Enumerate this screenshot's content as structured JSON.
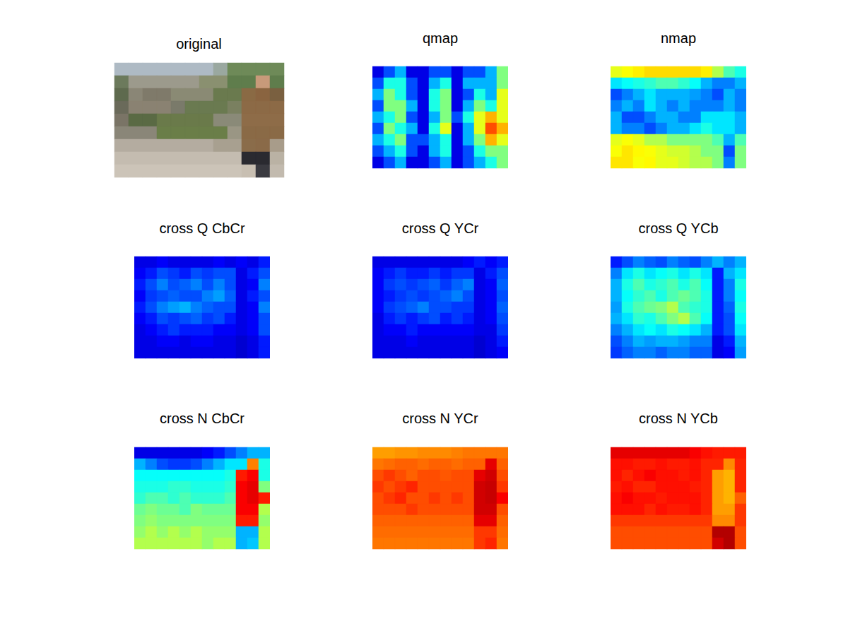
{
  "chart_data": [
    {
      "type": "image",
      "title": "original",
      "tick_labels": false,
      "colors": [
        [
          "#aebac4",
          "#aebac4",
          "#aebac4",
          "#aebac4",
          "#aebac4",
          "#aebac4",
          "#aebac4",
          "#9aa8a0",
          "#6e8a58",
          "#6e8a58",
          "#6e8a58",
          "#6e8a58"
        ],
        [
          "#6c7a5c",
          "#9c9a8c",
          "#9c9a8c",
          "#9c9a8c",
          "#9c9a8c",
          "#9c9a8c",
          "#8a9070",
          "#8a9070",
          "#5f7d4c",
          "#5f7d4c",
          "#c89a7a",
          "#5f7d4c"
        ],
        [
          "#5e6a4e",
          "#8a8676",
          "#7f7a6a",
          "#7f7a6a",
          "#8a8a74",
          "#8a8a74",
          "#8a8a74",
          "#6a7a4e",
          "#6a7a4e",
          "#8a6a44",
          "#8a6440",
          "#7a6040"
        ],
        [
          "#6a6a5a",
          "#8a8272",
          "#8a8272",
          "#8a8272",
          "#7a7a6a",
          "#6a7a50",
          "#6a7a50",
          "#6a7a50",
          "#7a8060",
          "#8c6a46",
          "#8c6a46",
          "#8c6a46"
        ],
        [
          "#7a7466",
          "#5a6a44",
          "#5a6a44",
          "#6a7a4a",
          "#6a7a4a",
          "#6a7a4a",
          "#6a7a4a",
          "#8a8a78",
          "#8a8a78",
          "#8e6c48",
          "#8e6c48",
          "#8e6c48"
        ],
        [
          "#8a8678",
          "#8a8678",
          "#8a8678",
          "#6a7e48",
          "#6a7e48",
          "#6a7e48",
          "#6a7e48",
          "#6a7e48",
          "#9a9684",
          "#8a6a46",
          "#8a6a46",
          "#8a6a46"
        ],
        [
          "#b4aca0",
          "#b4aca0",
          "#b4aca0",
          "#b4aca0",
          "#b4aca0",
          "#b4aca0",
          "#b4aca0",
          "#a8a090",
          "#a8a090",
          "#8a6c4a",
          "#8a6a48",
          "#a89c8a"
        ],
        [
          "#c4bcb0",
          "#c4bcb0",
          "#c4bcb0",
          "#c4bcb0",
          "#c4bcb0",
          "#c4bcb0",
          "#c4bcb0",
          "#c4bcb0",
          "#c4bcb0",
          "#2a2a30",
          "#2a2a30",
          "#bab2a4"
        ],
        [
          "#ccc4b8",
          "#ccc4b8",
          "#ccc4b8",
          "#ccc4b8",
          "#ccc4b8",
          "#ccc4b8",
          "#ccc4b8",
          "#ccc4b8",
          "#ccc4b8",
          "#c8bfb2",
          "#3a3a40",
          "#c2baae"
        ]
      ]
    },
    {
      "type": "heatmap",
      "title": "qmap",
      "tick_labels": false,
      "clim": [
        0,
        1
      ],
      "cells": [
        [
          0.1,
          0.2,
          0.3,
          0.1,
          0.1,
          0.2,
          0.2,
          0.1,
          0.2,
          0.2,
          0.3,
          0.5
        ],
        [
          0.2,
          0.4,
          0.4,
          0.2,
          0.1,
          0.3,
          0.4,
          0.1,
          0.3,
          0.3,
          0.3,
          0.5
        ],
        [
          0.3,
          0.5,
          0.4,
          0.2,
          0.1,
          0.4,
          0.5,
          0.1,
          0.2,
          0.4,
          0.3,
          0.6
        ],
        [
          0.2,
          0.5,
          0.5,
          0.3,
          0.1,
          0.4,
          0.5,
          0.1,
          0.3,
          0.5,
          0.4,
          0.6
        ],
        [
          0.3,
          0.4,
          0.5,
          0.2,
          0.1,
          0.3,
          0.5,
          0.2,
          0.4,
          0.6,
          0.7,
          0.6
        ],
        [
          0.2,
          0.5,
          0.4,
          0.3,
          0.1,
          0.4,
          0.6,
          0.1,
          0.3,
          0.6,
          0.8,
          0.7
        ],
        [
          0.3,
          0.4,
          0.5,
          0.2,
          0.2,
          0.3,
          0.4,
          0.1,
          0.3,
          0.5,
          0.7,
          0.6
        ],
        [
          0.2,
          0.3,
          0.4,
          0.2,
          0.1,
          0.3,
          0.4,
          0.1,
          0.2,
          0.4,
          0.5,
          0.5
        ],
        [
          0.1,
          0.2,
          0.3,
          0.1,
          0.1,
          0.2,
          0.3,
          0.1,
          0.2,
          0.3,
          0.4,
          0.5
        ]
      ]
    },
    {
      "type": "heatmap",
      "title": "nmap",
      "tick_labels": false,
      "clim": [
        0,
        1
      ],
      "cells": [
        [
          0.6,
          0.62,
          0.64,
          0.66,
          0.66,
          0.66,
          0.66,
          0.66,
          0.64,
          0.55,
          0.45,
          0.4
        ],
        [
          0.35,
          0.38,
          0.4,
          0.42,
          0.45,
          0.45,
          0.42,
          0.38,
          0.3,
          0.25,
          0.25,
          0.3
        ],
        [
          0.2,
          0.25,
          0.3,
          0.35,
          0.3,
          0.3,
          0.3,
          0.28,
          0.25,
          0.2,
          0.3,
          0.25
        ],
        [
          0.25,
          0.3,
          0.25,
          0.35,
          0.3,
          0.25,
          0.3,
          0.25,
          0.25,
          0.25,
          0.3,
          0.25
        ],
        [
          0.3,
          0.2,
          0.2,
          0.25,
          0.3,
          0.3,
          0.25,
          0.25,
          0.35,
          0.35,
          0.35,
          0.3
        ],
        [
          0.3,
          0.25,
          0.25,
          0.2,
          0.25,
          0.3,
          0.3,
          0.35,
          0.4,
          0.35,
          0.35,
          0.3
        ],
        [
          0.6,
          0.62,
          0.6,
          0.55,
          0.55,
          0.5,
          0.5,
          0.5,
          0.5,
          0.45,
          0.3,
          0.45
        ],
        [
          0.62,
          0.65,
          0.63,
          0.62,
          0.6,
          0.58,
          0.58,
          0.55,
          0.5,
          0.5,
          0.2,
          0.5
        ],
        [
          0.65,
          0.65,
          0.62,
          0.63,
          0.6,
          0.6,
          0.58,
          0.55,
          0.55,
          0.5,
          0.25,
          0.5
        ]
      ]
    },
    {
      "type": "heatmap",
      "title": "cross Q CbCr",
      "tick_labels": false,
      "clim": [
        0,
        1
      ],
      "cells": [
        [
          0.1,
          0.1,
          0.12,
          0.1,
          0.1,
          0.1,
          0.1,
          0.12,
          0.1,
          0.12,
          0.1,
          0.15
        ],
        [
          0.12,
          0.15,
          0.2,
          0.18,
          0.15,
          0.2,
          0.18,
          0.2,
          0.2,
          0.1,
          0.15,
          0.2
        ],
        [
          0.15,
          0.2,
          0.25,
          0.2,
          0.22,
          0.25,
          0.2,
          0.25,
          0.2,
          0.1,
          0.12,
          0.25
        ],
        [
          0.12,
          0.18,
          0.2,
          0.22,
          0.2,
          0.2,
          0.25,
          0.28,
          0.22,
          0.1,
          0.15,
          0.2
        ],
        [
          0.15,
          0.2,
          0.25,
          0.28,
          0.3,
          0.25,
          0.22,
          0.2,
          0.2,
          0.1,
          0.12,
          0.25
        ],
        [
          0.12,
          0.15,
          0.2,
          0.18,
          0.2,
          0.22,
          0.18,
          0.2,
          0.15,
          0.1,
          0.12,
          0.2
        ],
        [
          0.1,
          0.12,
          0.15,
          0.18,
          0.15,
          0.15,
          0.15,
          0.12,
          0.12,
          0.1,
          0.12,
          0.2
        ],
        [
          0.1,
          0.1,
          0.12,
          0.12,
          0.1,
          0.12,
          0.12,
          0.1,
          0.1,
          0.08,
          0.1,
          0.15
        ],
        [
          0.1,
          0.1,
          0.1,
          0.1,
          0.1,
          0.1,
          0.1,
          0.1,
          0.1,
          0.08,
          0.1,
          0.15
        ]
      ]
    },
    {
      "type": "heatmap",
      "title": "cross Q YCr",
      "tick_labels": false,
      "clim": [
        0,
        1
      ],
      "cells": [
        [
          0.1,
          0.1,
          0.1,
          0.1,
          0.1,
          0.1,
          0.1,
          0.1,
          0.12,
          0.15,
          0.12,
          0.15
        ],
        [
          0.12,
          0.15,
          0.18,
          0.15,
          0.15,
          0.18,
          0.15,
          0.18,
          0.18,
          0.1,
          0.15,
          0.2
        ],
        [
          0.12,
          0.18,
          0.2,
          0.18,
          0.2,
          0.22,
          0.18,
          0.22,
          0.25,
          0.1,
          0.12,
          0.22
        ],
        [
          0.12,
          0.15,
          0.18,
          0.2,
          0.18,
          0.2,
          0.22,
          0.25,
          0.2,
          0.1,
          0.12,
          0.2
        ],
        [
          0.12,
          0.18,
          0.2,
          0.22,
          0.25,
          0.2,
          0.2,
          0.18,
          0.18,
          0.1,
          0.12,
          0.22
        ],
        [
          0.1,
          0.15,
          0.18,
          0.15,
          0.18,
          0.2,
          0.15,
          0.18,
          0.15,
          0.1,
          0.12,
          0.2
        ],
        [
          0.1,
          0.12,
          0.12,
          0.15,
          0.12,
          0.12,
          0.12,
          0.12,
          0.12,
          0.1,
          0.1,
          0.18
        ],
        [
          0.1,
          0.1,
          0.1,
          0.12,
          0.1,
          0.1,
          0.1,
          0.1,
          0.1,
          0.08,
          0.1,
          0.15
        ],
        [
          0.1,
          0.1,
          0.1,
          0.1,
          0.1,
          0.1,
          0.1,
          0.1,
          0.1,
          0.08,
          0.1,
          0.12
        ]
      ]
    },
    {
      "type": "heatmap",
      "title": "cross Q YCb",
      "tick_labels": false,
      "clim": [
        0,
        1
      ],
      "cells": [
        [
          0.15,
          0.2,
          0.25,
          0.22,
          0.2,
          0.25,
          0.22,
          0.2,
          0.25,
          0.3,
          0.25,
          0.3
        ],
        [
          0.25,
          0.35,
          0.4,
          0.35,
          0.38,
          0.4,
          0.35,
          0.4,
          0.35,
          0.15,
          0.3,
          0.35
        ],
        [
          0.3,
          0.4,
          0.45,
          0.4,
          0.42,
          0.45,
          0.4,
          0.45,
          0.38,
          0.15,
          0.25,
          0.4
        ],
        [
          0.3,
          0.38,
          0.42,
          0.45,
          0.4,
          0.45,
          0.48,
          0.45,
          0.4,
          0.15,
          0.25,
          0.38
        ],
        [
          0.28,
          0.4,
          0.45,
          0.48,
          0.5,
          0.55,
          0.45,
          0.42,
          0.4,
          0.15,
          0.22,
          0.4
        ],
        [
          0.3,
          0.35,
          0.42,
          0.4,
          0.45,
          0.5,
          0.55,
          0.45,
          0.38,
          0.15,
          0.2,
          0.38
        ],
        [
          0.25,
          0.3,
          0.35,
          0.38,
          0.35,
          0.4,
          0.38,
          0.35,
          0.3,
          0.15,
          0.2,
          0.35
        ],
        [
          0.2,
          0.25,
          0.3,
          0.28,
          0.3,
          0.3,
          0.28,
          0.25,
          0.25,
          0.1,
          0.15,
          0.3
        ],
        [
          0.18,
          0.22,
          0.25,
          0.25,
          0.22,
          0.25,
          0.25,
          0.22,
          0.22,
          0.1,
          0.12,
          0.28
        ]
      ]
    },
    {
      "type": "heatmap",
      "title": "cross N CbCr",
      "tick_labels": false,
      "clim": [
        0,
        1
      ],
      "cells": [
        [
          0.1,
          0.1,
          0.1,
          0.1,
          0.1,
          0.1,
          0.12,
          0.15,
          0.2,
          0.25,
          0.3,
          0.3
        ],
        [
          0.3,
          0.25,
          0.2,
          0.18,
          0.18,
          0.2,
          0.25,
          0.3,
          0.35,
          0.35,
          0.75,
          0.4
        ],
        [
          0.38,
          0.38,
          0.38,
          0.38,
          0.38,
          0.38,
          0.38,
          0.38,
          0.4,
          0.85,
          0.88,
          0.4
        ],
        [
          0.4,
          0.4,
          0.4,
          0.42,
          0.42,
          0.4,
          0.4,
          0.4,
          0.42,
          0.88,
          0.9,
          0.5
        ],
        [
          0.42,
          0.45,
          0.45,
          0.42,
          0.45,
          0.42,
          0.42,
          0.42,
          0.45,
          0.88,
          0.9,
          0.85
        ],
        [
          0.48,
          0.5,
          0.48,
          0.48,
          0.45,
          0.5,
          0.48,
          0.48,
          0.48,
          0.88,
          0.88,
          0.55
        ],
        [
          0.5,
          0.52,
          0.5,
          0.5,
          0.5,
          0.5,
          0.5,
          0.5,
          0.5,
          0.85,
          0.85,
          0.52
        ],
        [
          0.52,
          0.55,
          0.52,
          0.55,
          0.52,
          0.55,
          0.52,
          0.52,
          0.52,
          0.3,
          0.3,
          0.55
        ],
        [
          0.55,
          0.55,
          0.55,
          0.55,
          0.55,
          0.55,
          0.52,
          0.55,
          0.55,
          0.3,
          0.32,
          0.55
        ]
      ]
    },
    {
      "type": "heatmap",
      "title": "cross N YCr",
      "tick_labels": false,
      "clim": [
        0,
        1
      ],
      "cells": [
        [
          0.72,
          0.72,
          0.73,
          0.73,
          0.74,
          0.74,
          0.74,
          0.75,
          0.76,
          0.76,
          0.76,
          0.76
        ],
        [
          0.76,
          0.77,
          0.78,
          0.78,
          0.77,
          0.78,
          0.78,
          0.77,
          0.78,
          0.78,
          0.9,
          0.78
        ],
        [
          0.8,
          0.82,
          0.8,
          0.78,
          0.8,
          0.8,
          0.79,
          0.8,
          0.8,
          0.9,
          0.92,
          0.8
        ],
        [
          0.82,
          0.8,
          0.82,
          0.84,
          0.8,
          0.8,
          0.8,
          0.8,
          0.8,
          0.92,
          0.93,
          0.82
        ],
        [
          0.8,
          0.82,
          0.84,
          0.8,
          0.8,
          0.82,
          0.8,
          0.82,
          0.8,
          0.92,
          0.93,
          0.88
        ],
        [
          0.8,
          0.8,
          0.8,
          0.82,
          0.8,
          0.8,
          0.8,
          0.8,
          0.8,
          0.92,
          0.92,
          0.8
        ],
        [
          0.78,
          0.78,
          0.78,
          0.78,
          0.78,
          0.78,
          0.78,
          0.78,
          0.78,
          0.9,
          0.9,
          0.78
        ],
        [
          0.77,
          0.77,
          0.77,
          0.77,
          0.77,
          0.77,
          0.77,
          0.77,
          0.77,
          0.82,
          0.82,
          0.77
        ],
        [
          0.76,
          0.76,
          0.76,
          0.76,
          0.76,
          0.76,
          0.76,
          0.76,
          0.76,
          0.82,
          0.84,
          0.76
        ]
      ]
    },
    {
      "type": "heatmap",
      "title": "cross N YCb",
      "tick_labels": false,
      "clim": [
        0,
        1
      ],
      "cells": [
        [
          0.9,
          0.9,
          0.9,
          0.9,
          0.9,
          0.9,
          0.9,
          0.88,
          0.86,
          0.85,
          0.85,
          0.85
        ],
        [
          0.86,
          0.86,
          0.85,
          0.85,
          0.86,
          0.85,
          0.85,
          0.86,
          0.84,
          0.84,
          0.74,
          0.84
        ],
        [
          0.86,
          0.84,
          0.86,
          0.88,
          0.86,
          0.86,
          0.85,
          0.86,
          0.84,
          0.72,
          0.7,
          0.84
        ],
        [
          0.85,
          0.86,
          0.84,
          0.84,
          0.86,
          0.86,
          0.86,
          0.85,
          0.84,
          0.72,
          0.7,
          0.84
        ],
        [
          0.86,
          0.88,
          0.86,
          0.86,
          0.85,
          0.86,
          0.86,
          0.86,
          0.84,
          0.72,
          0.7,
          0.78
        ],
        [
          0.86,
          0.86,
          0.86,
          0.84,
          0.86,
          0.85,
          0.85,
          0.86,
          0.84,
          0.72,
          0.72,
          0.82
        ],
        [
          0.82,
          0.82,
          0.82,
          0.82,
          0.82,
          0.82,
          0.82,
          0.82,
          0.82,
          0.74,
          0.74,
          0.82
        ],
        [
          0.8,
          0.8,
          0.8,
          0.8,
          0.8,
          0.8,
          0.8,
          0.8,
          0.8,
          0.95,
          0.95,
          0.8
        ],
        [
          0.8,
          0.8,
          0.8,
          0.8,
          0.8,
          0.8,
          0.8,
          0.8,
          0.8,
          0.92,
          0.95,
          0.8
        ]
      ]
    }
  ]
}
